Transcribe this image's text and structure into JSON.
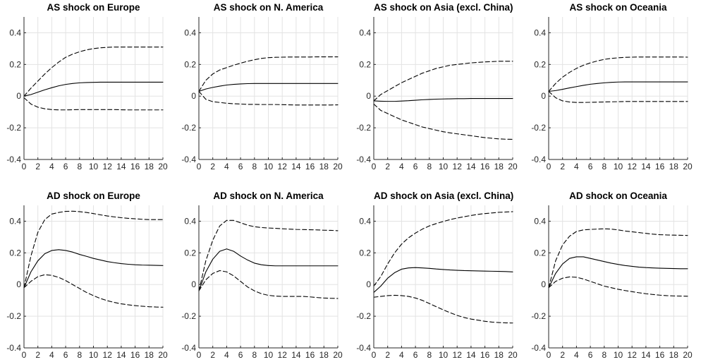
{
  "chart_data": [
    {
      "type": "line",
      "title": "AS shock on Europe",
      "x": [
        0,
        1,
        2,
        3,
        4,
        5,
        6,
        7,
        8,
        9,
        10,
        11,
        12,
        13,
        14,
        15,
        16,
        17,
        18,
        19,
        20
      ],
      "xlim": [
        0,
        20
      ],
      "ylim": [
        -0.4,
        0.5
      ],
      "xticks": [
        0,
        2,
        4,
        6,
        8,
        10,
        12,
        14,
        16,
        18,
        20
      ],
      "yticks": [
        -0.4,
        -0.2,
        0,
        0.2,
        0.4
      ],
      "xtick_labels": [
        "0",
        "2",
        "4",
        "6",
        "8",
        "10",
        "12",
        "14",
        "16",
        "18",
        "20"
      ],
      "ytick_labels": [
        "-0.4",
        "-0.2",
        "0",
        "0.2",
        "0.4"
      ],
      "grid": true,
      "series": [
        {
          "style": "solid",
          "values": [
            0,
            0.01,
            0.025,
            0.04,
            0.053,
            0.065,
            0.074,
            0.08,
            0.084,
            0.086,
            0.087,
            0.088,
            0.088,
            0.088,
            0.088,
            0.088,
            0.088,
            0.088,
            0.088,
            0.088,
            0.088
          ]
        },
        {
          "style": "dashed",
          "values": [
            0,
            0.05,
            0.095,
            0.14,
            0.18,
            0.215,
            0.245,
            0.265,
            0.28,
            0.292,
            0.3,
            0.305,
            0.308,
            0.31,
            0.31,
            0.31,
            0.31,
            0.31,
            0.31,
            0.31,
            0.31
          ]
        },
        {
          "style": "dashed",
          "values": [
            -0.01,
            -0.05,
            -0.07,
            -0.08,
            -0.085,
            -0.087,
            -0.087,
            -0.086,
            -0.085,
            -0.085,
            -0.085,
            -0.085,
            -0.085,
            -0.085,
            -0.086,
            -0.087,
            -0.087,
            -0.087,
            -0.087,
            -0.087,
            -0.087
          ]
        }
      ]
    },
    {
      "type": "line",
      "title": "AS shock on N. America",
      "x": [
        0,
        1,
        2,
        3,
        4,
        5,
        6,
        7,
        8,
        9,
        10,
        11,
        12,
        13,
        14,
        15,
        16,
        17,
        18,
        19,
        20
      ],
      "xlim": [
        0,
        20
      ],
      "ylim": [
        -0.4,
        0.5
      ],
      "xticks": [
        0,
        2,
        4,
        6,
        8,
        10,
        12,
        14,
        16,
        18,
        20
      ],
      "yticks": [
        -0.4,
        -0.2,
        0,
        0.2,
        0.4
      ],
      "xtick_labels": [
        "0",
        "2",
        "4",
        "6",
        "8",
        "10",
        "12",
        "14",
        "16",
        "18",
        "20"
      ],
      "ytick_labels": [
        "-0.4",
        "-0.2",
        "0",
        "0.2",
        "0.4"
      ],
      "grid": true,
      "series": [
        {
          "style": "solid",
          "values": [
            0.03,
            0.045,
            0.055,
            0.063,
            0.07,
            0.074,
            0.077,
            0.079,
            0.08,
            0.08,
            0.08,
            0.08,
            0.08,
            0.08,
            0.08,
            0.08,
            0.08,
            0.08,
            0.08,
            0.08,
            0.08
          ]
        },
        {
          "style": "dashed",
          "values": [
            0.03,
            0.1,
            0.14,
            0.165,
            0.18,
            0.195,
            0.208,
            0.22,
            0.23,
            0.238,
            0.243,
            0.245,
            0.246,
            0.247,
            0.247,
            0.247,
            0.247,
            0.248,
            0.248,
            0.248,
            0.248
          ]
        },
        {
          "style": "dashed",
          "values": [
            0.03,
            -0.02,
            -0.035,
            -0.04,
            -0.045,
            -0.048,
            -0.05,
            -0.052,
            -0.052,
            -0.053,
            -0.053,
            -0.053,
            -0.054,
            -0.055,
            -0.056,
            -0.056,
            -0.056,
            -0.056,
            -0.056,
            -0.056,
            -0.055
          ]
        }
      ]
    },
    {
      "type": "line",
      "title": "AS shock on Asia (excl. China)",
      "x": [
        0,
        1,
        2,
        3,
        4,
        5,
        6,
        7,
        8,
        9,
        10,
        11,
        12,
        13,
        14,
        15,
        16,
        17,
        18,
        19,
        20
      ],
      "xlim": [
        0,
        20
      ],
      "ylim": [
        -0.4,
        0.5
      ],
      "xticks": [
        0,
        2,
        4,
        6,
        8,
        10,
        12,
        14,
        16,
        18,
        20
      ],
      "yticks": [
        -0.4,
        -0.2,
        0,
        0.2,
        0.4
      ],
      "xtick_labels": [
        "0",
        "2",
        "4",
        "6",
        "8",
        "10",
        "12",
        "14",
        "16",
        "18",
        "20"
      ],
      "ytick_labels": [
        "-0.4",
        "-0.2",
        "0",
        "0.2",
        "0.4"
      ],
      "grid": true,
      "series": [
        {
          "style": "solid",
          "values": [
            -0.03,
            -0.032,
            -0.033,
            -0.033,
            -0.031,
            -0.029,
            -0.026,
            -0.023,
            -0.021,
            -0.019,
            -0.018,
            -0.017,
            -0.016,
            -0.016,
            -0.015,
            -0.015,
            -0.015,
            -0.015,
            -0.015,
            -0.015,
            -0.015
          ]
        },
        {
          "style": "dashed",
          "values": [
            -0.03,
            0.01,
            0.035,
            0.06,
            0.085,
            0.105,
            0.125,
            0.145,
            0.16,
            0.175,
            0.185,
            0.195,
            0.2,
            0.205,
            0.21,
            0.213,
            0.216,
            0.218,
            0.22,
            0.22,
            0.22
          ]
        },
        {
          "style": "dashed",
          "values": [
            -0.05,
            -0.09,
            -0.11,
            -0.13,
            -0.15,
            -0.165,
            -0.18,
            -0.195,
            -0.205,
            -0.215,
            -0.225,
            -0.232,
            -0.238,
            -0.244,
            -0.25,
            -0.256,
            -0.262,
            -0.266,
            -0.27,
            -0.272,
            -0.273
          ]
        }
      ]
    },
    {
      "type": "line",
      "title": "AS shock on Oceania",
      "x": [
        0,
        1,
        2,
        3,
        4,
        5,
        6,
        7,
        8,
        9,
        10,
        11,
        12,
        13,
        14,
        15,
        16,
        17,
        18,
        19,
        20
      ],
      "xlim": [
        0,
        20
      ],
      "ylim": [
        -0.4,
        0.5
      ],
      "xticks": [
        0,
        2,
        4,
        6,
        8,
        10,
        12,
        14,
        16,
        18,
        20
      ],
      "yticks": [
        -0.4,
        -0.2,
        0,
        0.2,
        0.4
      ],
      "xtick_labels": [
        "0",
        "2",
        "4",
        "6",
        "8",
        "10",
        "12",
        "14",
        "16",
        "18",
        "20"
      ],
      "ytick_labels": [
        "-0.4",
        "-0.2",
        "0",
        "0.2",
        "0.4"
      ],
      "grid": true,
      "series": [
        {
          "style": "solid",
          "values": [
            0.03,
            0.035,
            0.043,
            0.052,
            0.06,
            0.068,
            0.075,
            0.08,
            0.084,
            0.087,
            0.089,
            0.09,
            0.09,
            0.09,
            0.09,
            0.09,
            0.09,
            0.09,
            0.09,
            0.09,
            0.09
          ]
        },
        {
          "style": "dashed",
          "values": [
            0.03,
            0.08,
            0.12,
            0.15,
            0.175,
            0.195,
            0.21,
            0.222,
            0.232,
            0.238,
            0.242,
            0.245,
            0.246,
            0.247,
            0.247,
            0.247,
            0.247,
            0.247,
            0.247,
            0.247,
            0.246
          ]
        },
        {
          "style": "dashed",
          "values": [
            0.03,
            -0.01,
            -0.03,
            -0.037,
            -0.04,
            -0.04,
            -0.039,
            -0.038,
            -0.037,
            -0.036,
            -0.035,
            -0.034,
            -0.034,
            -0.034,
            -0.034,
            -0.034,
            -0.034,
            -0.034,
            -0.034,
            -0.034,
            -0.034
          ]
        }
      ]
    },
    {
      "type": "line",
      "title": "AD shock on Europe",
      "x": [
        0,
        1,
        2,
        3,
        4,
        5,
        6,
        7,
        8,
        9,
        10,
        11,
        12,
        13,
        14,
        15,
        16,
        17,
        18,
        19,
        20
      ],
      "xlim": [
        0,
        20
      ],
      "ylim": [
        -0.4,
        0.5
      ],
      "xticks": [
        0,
        2,
        4,
        6,
        8,
        10,
        12,
        14,
        16,
        18,
        20
      ],
      "yticks": [
        -0.4,
        -0.2,
        0,
        0.2,
        0.4
      ],
      "xtick_labels": [
        "0",
        "2",
        "4",
        "6",
        "8",
        "10",
        "12",
        "14",
        "16",
        "18",
        "20"
      ],
      "ytick_labels": [
        "-0.4",
        "-0.2",
        "0",
        "0.2",
        "0.4"
      ],
      "grid": true,
      "series": [
        {
          "style": "solid",
          "values": [
            -0.02,
            0.08,
            0.15,
            0.195,
            0.215,
            0.22,
            0.215,
            0.205,
            0.19,
            0.178,
            0.165,
            0.155,
            0.145,
            0.138,
            0.132,
            0.128,
            0.125,
            0.123,
            0.122,
            0.121,
            0.12
          ]
        },
        {
          "style": "dashed",
          "values": [
            -0.02,
            0.18,
            0.33,
            0.41,
            0.445,
            0.455,
            0.462,
            0.463,
            0.46,
            0.455,
            0.448,
            0.44,
            0.433,
            0.427,
            0.422,
            0.418,
            0.415,
            0.412,
            0.41,
            0.41,
            0.41
          ]
        },
        {
          "style": "dashed",
          "values": [
            -0.02,
            0.02,
            0.05,
            0.062,
            0.058,
            0.045,
            0.025,
            0.0,
            -0.025,
            -0.05,
            -0.07,
            -0.088,
            -0.102,
            -0.113,
            -0.122,
            -0.128,
            -0.133,
            -0.137,
            -0.14,
            -0.142,
            -0.143
          ]
        }
      ]
    },
    {
      "type": "line",
      "title": "AD shock on N. America",
      "x": [
        0,
        1,
        2,
        3,
        4,
        5,
        6,
        7,
        8,
        9,
        10,
        11,
        12,
        13,
        14,
        15,
        16,
        17,
        18,
        19,
        20
      ],
      "xlim": [
        0,
        20
      ],
      "ylim": [
        -0.4,
        0.5
      ],
      "xticks": [
        0,
        2,
        4,
        6,
        8,
        10,
        12,
        14,
        16,
        18,
        20
      ],
      "yticks": [
        -0.4,
        -0.2,
        0,
        0.2,
        0.4
      ],
      "xtick_labels": [
        "0",
        "2",
        "4",
        "6",
        "8",
        "10",
        "12",
        "14",
        "16",
        "18",
        "20"
      ],
      "ytick_labels": [
        "-0.4",
        "-0.2",
        "0",
        "0.2",
        "0.4"
      ],
      "grid": true,
      "series": [
        {
          "style": "solid",
          "values": [
            -0.04,
            0.08,
            0.16,
            0.21,
            0.225,
            0.21,
            0.18,
            0.155,
            0.135,
            0.125,
            0.12,
            0.118,
            0.118,
            0.118,
            0.118,
            0.118,
            0.118,
            0.118,
            0.118,
            0.118,
            0.118
          ]
        },
        {
          "style": "dashed",
          "values": [
            -0.04,
            0.15,
            0.28,
            0.37,
            0.405,
            0.405,
            0.39,
            0.375,
            0.365,
            0.36,
            0.357,
            0.355,
            0.352,
            0.35,
            0.348,
            0.347,
            0.346,
            0.345,
            0.343,
            0.342,
            0.34
          ]
        },
        {
          "style": "dashed",
          "values": [
            -0.04,
            0.03,
            0.07,
            0.088,
            0.08,
            0.055,
            0.02,
            -0.015,
            -0.04,
            -0.058,
            -0.068,
            -0.073,
            -0.075,
            -0.075,
            -0.075,
            -0.075,
            -0.078,
            -0.082,
            -0.085,
            -0.087,
            -0.088
          ]
        }
      ]
    },
    {
      "type": "line",
      "title": "AD shock on Asia (excl. China)",
      "x": [
        0,
        1,
        2,
        3,
        4,
        5,
        6,
        7,
        8,
        9,
        10,
        11,
        12,
        13,
        14,
        15,
        16,
        17,
        18,
        19,
        20
      ],
      "xlim": [
        0,
        20
      ],
      "ylim": [
        -0.4,
        0.5
      ],
      "xticks": [
        0,
        2,
        4,
        6,
        8,
        10,
        12,
        14,
        16,
        18,
        20
      ],
      "yticks": [
        -0.4,
        -0.2,
        0,
        0.2,
        0.4
      ],
      "xtick_labels": [
        "0",
        "2",
        "4",
        "6",
        "8",
        "10",
        "12",
        "14",
        "16",
        "18",
        "20"
      ],
      "ytick_labels": [
        "-0.4",
        "-0.2",
        "0",
        "0.2",
        "0.4"
      ],
      "grid": true,
      "series": [
        {
          "style": "solid",
          "values": [
            -0.05,
            -0.01,
            0.04,
            0.075,
            0.097,
            0.105,
            0.107,
            0.105,
            0.102,
            0.098,
            0.095,
            0.092,
            0.09,
            0.088,
            0.087,
            0.086,
            0.085,
            0.084,
            0.083,
            0.082,
            0.08
          ]
        },
        {
          "style": "dashed",
          "values": [
            -0.01,
            0.05,
            0.13,
            0.2,
            0.255,
            0.295,
            0.325,
            0.35,
            0.37,
            0.385,
            0.398,
            0.41,
            0.42,
            0.428,
            0.436,
            0.443,
            0.448,
            0.452,
            0.456,
            0.458,
            0.46
          ]
        },
        {
          "style": "dashed",
          "values": [
            -0.08,
            -0.075,
            -0.07,
            -0.068,
            -0.07,
            -0.075,
            -0.085,
            -0.1,
            -0.12,
            -0.14,
            -0.16,
            -0.178,
            -0.195,
            -0.208,
            -0.218,
            -0.225,
            -0.232,
            -0.237,
            -0.24,
            -0.242,
            -0.243
          ]
        }
      ]
    },
    {
      "type": "line",
      "title": "AD shock on Oceania",
      "x": [
        0,
        1,
        2,
        3,
        4,
        5,
        6,
        7,
        8,
        9,
        10,
        11,
        12,
        13,
        14,
        15,
        16,
        17,
        18,
        19,
        20
      ],
      "xlim": [
        0,
        20
      ],
      "ylim": [
        -0.4,
        0.5
      ],
      "xticks": [
        0,
        2,
        4,
        6,
        8,
        10,
        12,
        14,
        16,
        18,
        20
      ],
      "yticks": [
        -0.4,
        -0.2,
        0,
        0.2,
        0.4
      ],
      "xtick_labels": [
        "0",
        "2",
        "4",
        "6",
        "8",
        "10",
        "12",
        "14",
        "16",
        "18",
        "20"
      ],
      "ytick_labels": [
        "-0.4",
        "-0.2",
        "0",
        "0.2",
        "0.4"
      ],
      "grid": true,
      "series": [
        {
          "style": "solid",
          "values": [
            -0.02,
            0.07,
            0.13,
            0.165,
            0.175,
            0.175,
            0.165,
            0.155,
            0.145,
            0.135,
            0.127,
            0.12,
            0.115,
            0.11,
            0.107,
            0.105,
            0.103,
            0.102,
            0.101,
            0.1,
            0.1
          ]
        },
        {
          "style": "dashed",
          "values": [
            -0.02,
            0.15,
            0.25,
            0.305,
            0.335,
            0.345,
            0.348,
            0.35,
            0.352,
            0.35,
            0.345,
            0.338,
            0.333,
            0.328,
            0.323,
            0.318,
            0.315,
            0.313,
            0.312,
            0.311,
            0.31
          ]
        },
        {
          "style": "dashed",
          "values": [
            -0.02,
            0.02,
            0.04,
            0.048,
            0.046,
            0.035,
            0.02,
            0.005,
            -0.01,
            -0.02,
            -0.03,
            -0.038,
            -0.045,
            -0.052,
            -0.058,
            -0.063,
            -0.067,
            -0.07,
            -0.072,
            -0.073,
            -0.074
          ]
        }
      ]
    }
  ]
}
